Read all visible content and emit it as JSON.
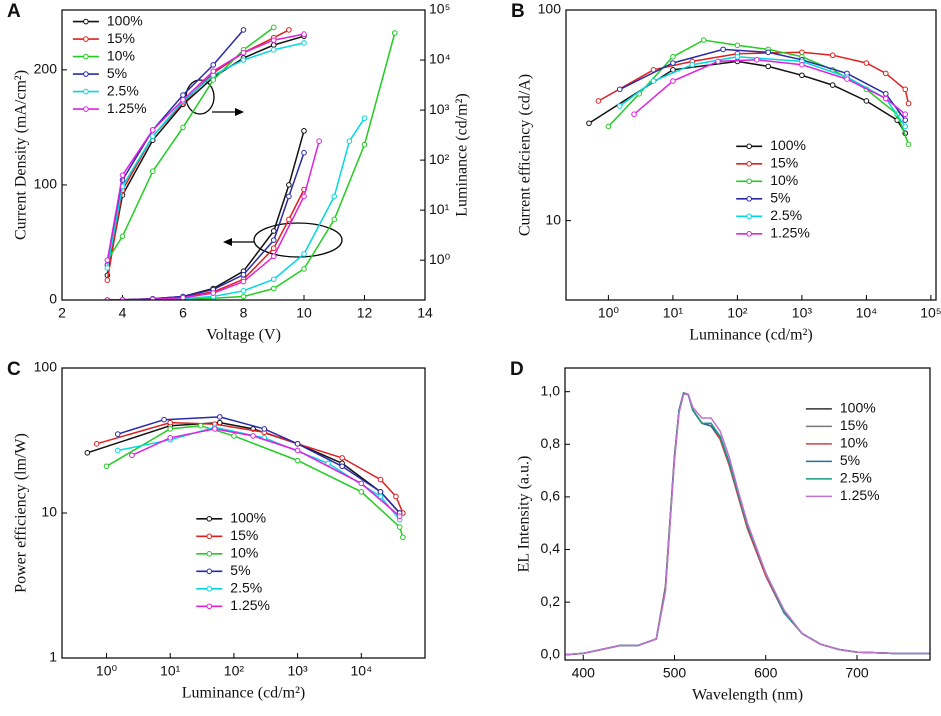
{
  "chart_data": [
    {
      "type": "line",
      "panel": "A",
      "x_label": "Voltage (V)",
      "y_label": "Current Density (mA/cm²)",
      "y2_label": "Luminance (cd/m²)",
      "xlim": [
        2,
        14
      ],
      "xticks": [
        2,
        4,
        6,
        8,
        10,
        12,
        14
      ],
      "ylim": [
        0,
        252
      ],
      "yticks": [
        0,
        100,
        200
      ],
      "y2lim": [
        0.16,
        100000
      ],
      "y2log": true,
      "y2ticks": [
        {
          "value": 1,
          "label": "10⁰"
        },
        {
          "value": 10,
          "label": "10¹"
        },
        {
          "value": 100,
          "label": "10²"
        },
        {
          "value": 1000,
          "label": "10³"
        },
        {
          "value": 10000,
          "label": "10⁴"
        },
        {
          "value": 100000,
          "label": "10⁵"
        }
      ],
      "legend_loc": "upper left",
      "markers": true,
      "series": [
        {
          "name": "100%",
          "color": "#111111",
          "x": [
            3.5,
            4,
            5,
            6,
            7,
            8,
            9,
            9.5,
            10
          ],
          "values": [
            0,
            0.2,
            1,
            3,
            10,
            25,
            60,
            100,
            147
          ]
        },
        {
          "name": "15%",
          "color": "#e02020",
          "x": [
            3.5,
            4,
            5,
            6,
            7,
            8,
            9,
            9.5,
            10
          ],
          "values": [
            0,
            0.2,
            0.8,
            2.5,
            7,
            18,
            45,
            70,
            96
          ]
        },
        {
          "name": "10%",
          "color": "#22cc22",
          "x": [
            4,
            5,
            6,
            7,
            8,
            9,
            10,
            11,
            12,
            13
          ],
          "values": [
            0,
            0.2,
            0.6,
            1.5,
            3,
            10,
            27,
            70,
            135,
            232
          ]
        },
        {
          "name": "5%",
          "color": "#2a2aa8",
          "x": [
            3.5,
            4,
            5,
            6,
            7,
            8,
            9,
            9.5,
            10
          ],
          "values": [
            0,
            0.2,
            1,
            3,
            9,
            22,
            52,
            90,
            128
          ]
        },
        {
          "name": "2.5%",
          "color": "#00d8e0",
          "x": [
            3.5,
            4,
            5,
            6,
            7,
            8,
            9,
            10,
            11,
            11.5,
            12
          ],
          "values": [
            0,
            0.1,
            0.4,
            1.2,
            3,
            8,
            18,
            40,
            90,
            138,
            158
          ]
        },
        {
          "name": "1.25%",
          "color": "#e020e0",
          "x": [
            3.5,
            4,
            5,
            6,
            7,
            8,
            9,
            10,
            10.5
          ],
          "values": [
            0,
            0.1,
            0.6,
            2,
            6,
            16,
            38,
            90,
            138
          ]
        },
        {
          "axis": "y2",
          "color": "#111111",
          "x": [
            3.5,
            4,
            5,
            6,
            7,
            8,
            9,
            10
          ],
          "values": [
            0.5,
            20,
            250,
            1300,
            4500,
            11000,
            20000,
            30000
          ]
        },
        {
          "axis": "y2",
          "color": "#e02020",
          "x": [
            3.5,
            4,
            5,
            6,
            7,
            8,
            9,
            9.5
          ],
          "values": [
            0.4,
            25,
            300,
            1400,
            5500,
            14000,
            28000,
            40000
          ]
        },
        {
          "axis": "y2",
          "color": "#22cc22",
          "x": [
            3.5,
            4,
            5,
            6,
            7,
            8,
            9
          ],
          "values": [
            1,
            3,
            60,
            450,
            4000,
            16000,
            45000
          ]
        },
        {
          "axis": "y2",
          "color": "#2a2aa8",
          "x": [
            3.5,
            4,
            5,
            6,
            7,
            8
          ],
          "values": [
            0.8,
            40,
            400,
            2000,
            8000,
            40000
          ]
        },
        {
          "axis": "y2",
          "color": "#00d8e0",
          "x": [
            3.5,
            4,
            5,
            6,
            7,
            8,
            9,
            10
          ],
          "values": [
            0.7,
            30,
            300,
            1500,
            5000,
            10000,
            16000,
            22000
          ]
        },
        {
          "axis": "y2",
          "color": "#e020e0",
          "x": [
            3.5,
            4,
            5,
            6,
            7,
            8,
            9,
            10
          ],
          "values": [
            1,
            50,
            400,
            1600,
            6000,
            14000,
            25000,
            33000
          ]
        }
      ]
    },
    {
      "type": "line",
      "panel": "B",
      "x_label": "Luminance (cd/m²)",
      "y_label": "Current efficiency (cd/A)",
      "xlim": [
        0.22,
        120000
      ],
      "xlog": true,
      "xticks": [
        {
          "value": 1,
          "label": "10⁰"
        },
        {
          "value": 10,
          "label": "10¹"
        },
        {
          "value": 100,
          "label": "10²"
        },
        {
          "value": 1000,
          "label": "10³"
        },
        {
          "value": 10000,
          "label": "10⁴"
        },
        {
          "value": 100000,
          "label": "10⁵"
        }
      ],
      "ylim": [
        4.2,
        100
      ],
      "ylog": true,
      "yticks": [
        10,
        100
      ],
      "legend_loc": "center",
      "markers": true,
      "series": [
        {
          "name": "100%",
          "color": "#111111",
          "x": [
            0.5,
            10,
            100,
            300,
            1000,
            3000,
            10000,
            30000,
            40000
          ],
          "values": [
            29,
            52,
            57,
            54,
            49,
            44,
            37,
            30,
            26
          ]
        },
        {
          "name": "15%",
          "color": "#e02020",
          "x": [
            0.7,
            5,
            20,
            100,
            1000,
            3000,
            10000,
            20000,
            40000,
            45000
          ],
          "values": [
            37,
            52,
            57,
            62,
            63,
            61,
            56,
            50,
            42,
            36
          ]
        },
        {
          "name": "10%",
          "color": "#22cc22",
          "x": [
            1,
            3,
            10,
            30,
            100,
            300,
            1000,
            3000,
            10000,
            30000,
            45000
          ],
          "values": [
            28,
            40,
            60,
            72,
            68,
            65,
            60,
            52,
            42,
            32,
            23
          ]
        },
        {
          "name": "5%",
          "color": "#2a2aa8",
          "x": [
            1.5,
            10,
            60,
            300,
            1000,
            5000,
            20000,
            40000
          ],
          "values": [
            42,
            56,
            65,
            63,
            58,
            50,
            40,
            30
          ]
        },
        {
          "name": "2.5%",
          "color": "#00d8e0",
          "x": [
            1.5,
            5,
            20,
            100,
            1000,
            5000,
            20000,
            40000
          ],
          "values": [
            35,
            46,
            55,
            60,
            57,
            48,
            38,
            28
          ]
        },
        {
          "name": "1.25%",
          "color": "#e020e0",
          "x": [
            2.5,
            10,
            50,
            200,
            1000,
            5000,
            20000,
            40000
          ],
          "values": [
            32,
            46,
            57,
            58,
            55,
            47,
            38,
            32
          ]
        }
      ]
    },
    {
      "type": "line",
      "panel": "C",
      "x_label": "Luminance (cd/m²)",
      "y_label": "Power efficiency (lm/W)",
      "xlim": [
        0.2,
        100000
      ],
      "xlog": true,
      "xticks": [
        {
          "value": 1,
          "label": "10⁰"
        },
        {
          "value": 10,
          "label": "10¹"
        },
        {
          "value": 100,
          "label": "10²"
        },
        {
          "value": 1000,
          "label": "10³"
        },
        {
          "value": 10000,
          "label": "10⁴"
        }
      ],
      "ylim": [
        1,
        100
      ],
      "ylog": true,
      "yticks": [
        1,
        10,
        100
      ],
      "legend_loc": "lower center",
      "markers": true,
      "series": [
        {
          "name": "100%",
          "color": "#111111",
          "x": [
            0.5,
            10,
            60,
            200,
            1000,
            5000,
            20000,
            40000
          ],
          "values": [
            26,
            40,
            42,
            38,
            30,
            22,
            14,
            10
          ]
        },
        {
          "name": "15%",
          "color": "#e02020",
          "x": [
            0.7,
            10,
            50,
            300,
            1000,
            5000,
            20000,
            35000,
            45000
          ],
          "values": [
            30,
            42,
            41,
            36,
            30,
            24,
            17,
            13,
            10
          ]
        },
        {
          "name": "10%",
          "color": "#22cc22",
          "x": [
            1,
            10,
            30,
            100,
            1000,
            10000,
            40000,
            45000
          ],
          "values": [
            21,
            38,
            40,
            34,
            23,
            14,
            8,
            6.8
          ]
        },
        {
          "name": "5%",
          "color": "#2a2aa8",
          "x": [
            1.5,
            8,
            60,
            300,
            1000,
            5000,
            20000,
            40000
          ],
          "values": [
            35,
            44,
            46,
            38,
            30,
            21,
            14,
            10
          ]
        },
        {
          "name": "2.5%",
          "color": "#00d8e0",
          "x": [
            1.5,
            10,
            50,
            300,
            3000,
            20000,
            40000
          ],
          "values": [
            27,
            32,
            39,
            33,
            22,
            13,
            9
          ]
        },
        {
          "name": "1.25%",
          "color": "#e020e0",
          "x": [
            2.5,
            10,
            50,
            200,
            1000,
            10000,
            40000
          ],
          "values": [
            25,
            33,
            38,
            34,
            27,
            16,
            9.5
          ]
        }
      ]
    },
    {
      "type": "line",
      "panel": "D",
      "x_label": "Wavelength (nm)",
      "y_label": "EL Intensity (a.u.)",
      "xlim": [
        380,
        780
      ],
      "xticks": [
        400,
        500,
        600,
        700
      ],
      "ylim": [
        -0.02,
        1.09
      ],
      "yticks": [
        {
          "value": 0,
          "label": "0,0"
        },
        {
          "value": 0.2,
          "label": "0,2"
        },
        {
          "value": 0.4,
          "label": "0,4"
        },
        {
          "value": 0.6,
          "label": "0,6"
        },
        {
          "value": 0.8,
          "label": "0,8"
        },
        {
          "value": 1,
          "label": "1,0"
        }
      ],
      "legend_loc": "center right",
      "markers": false,
      "series": [
        {
          "name": "100%",
          "color": "#333333",
          "x": [
            380,
            400,
            420,
            440,
            460,
            480,
            490,
            500,
            505,
            510,
            515,
            520,
            530,
            540,
            550,
            560,
            570,
            580,
            600,
            620,
            640,
            660,
            680,
            700,
            740,
            780
          ],
          "values": [
            0,
            0.005,
            0.02,
            0.035,
            0.035,
            0.06,
            0.25,
            0.75,
            0.93,
            0.995,
            0.99,
            0.93,
            0.88,
            0.87,
            0.82,
            0.72,
            0.6,
            0.48,
            0.3,
            0.16,
            0.08,
            0.04,
            0.02,
            0.01,
            0.005,
            0.005
          ]
        },
        {
          "name": "15%",
          "color": "#777777",
          "x": [
            380,
            400,
            420,
            440,
            460,
            480,
            490,
            500,
            505,
            510,
            515,
            520,
            530,
            540,
            550,
            560,
            570,
            580,
            600,
            620,
            640,
            660,
            680,
            700,
            740,
            780
          ],
          "values": [
            0,
            0.005,
            0.02,
            0.035,
            0.035,
            0.06,
            0.25,
            0.75,
            0.93,
            0.995,
            0.99,
            0.93,
            0.88,
            0.87,
            0.82,
            0.72,
            0.6,
            0.48,
            0.3,
            0.16,
            0.08,
            0.04,
            0.02,
            0.01,
            0.005,
            0.005
          ]
        },
        {
          "name": "10%",
          "color": "#d04040",
          "x": [
            380,
            400,
            420,
            440,
            460,
            480,
            490,
            500,
            505,
            510,
            515,
            520,
            530,
            540,
            550,
            560,
            570,
            580,
            600,
            620,
            640,
            660,
            680,
            700,
            740,
            780
          ],
          "values": [
            0,
            0.005,
            0.02,
            0.035,
            0.035,
            0.06,
            0.26,
            0.76,
            0.93,
            0.995,
            0.99,
            0.93,
            0.88,
            0.87,
            0.82,
            0.72,
            0.6,
            0.48,
            0.3,
            0.16,
            0.08,
            0.04,
            0.02,
            0.01,
            0.005,
            0.005
          ]
        },
        {
          "name": "5%",
          "color": "#1f6f9f",
          "x": [
            380,
            400,
            420,
            440,
            460,
            480,
            490,
            500,
            505,
            510,
            515,
            520,
            530,
            540,
            550,
            560,
            570,
            580,
            600,
            620,
            640,
            660,
            680,
            700,
            740,
            780
          ],
          "values": [
            0,
            0.005,
            0.02,
            0.035,
            0.035,
            0.06,
            0.25,
            0.75,
            0.93,
            0.995,
            0.99,
            0.93,
            0.88,
            0.87,
            0.83,
            0.73,
            0.61,
            0.49,
            0.31,
            0.16,
            0.08,
            0.04,
            0.02,
            0.01,
            0.005,
            0.005
          ]
        },
        {
          "name": "2.5%",
          "color": "#1a9a80",
          "x": [
            380,
            400,
            420,
            440,
            460,
            480,
            490,
            500,
            505,
            510,
            515,
            520,
            530,
            540,
            550,
            560,
            570,
            580,
            600,
            620,
            640,
            660,
            680,
            700,
            740,
            780
          ],
          "values": [
            0,
            0.005,
            0.02,
            0.035,
            0.035,
            0.06,
            0.25,
            0.75,
            0.93,
            0.995,
            0.99,
            0.93,
            0.88,
            0.88,
            0.83,
            0.73,
            0.61,
            0.49,
            0.31,
            0.16,
            0.08,
            0.04,
            0.02,
            0.01,
            0.005,
            0.005
          ]
        },
        {
          "name": "1.25%",
          "color": "#c070d0",
          "x": [
            380,
            400,
            420,
            440,
            460,
            480,
            490,
            500,
            505,
            510,
            515,
            520,
            530,
            540,
            550,
            560,
            570,
            580,
            600,
            620,
            640,
            660,
            680,
            700,
            740,
            780
          ],
          "values": [
            0,
            0.005,
            0.02,
            0.035,
            0.035,
            0.06,
            0.24,
            0.74,
            0.92,
            0.99,
            0.99,
            0.94,
            0.9,
            0.9,
            0.85,
            0.75,
            0.62,
            0.5,
            0.31,
            0.17,
            0.08,
            0.04,
            0.02,
            0.01,
            0.005,
            0.005
          ]
        }
      ]
    }
  ]
}
